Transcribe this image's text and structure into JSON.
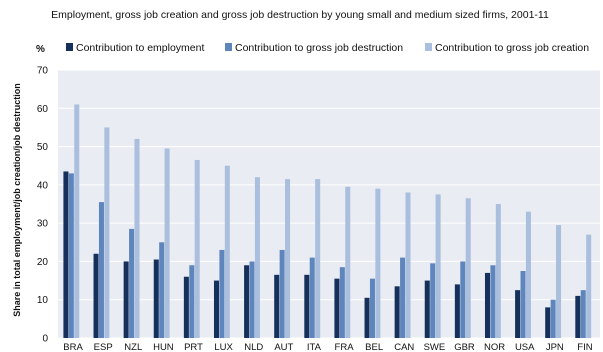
{
  "chart_data": {
    "type": "bar",
    "title": "Employment, gross job creation and gross job destruction by young small and medium sized firms, 2001-11",
    "unit_label": "%",
    "ylabel": "Share in total employment/job creation/job destruction",
    "ylim": [
      0,
      70
    ],
    "yticks": [
      0,
      10,
      20,
      30,
      40,
      50,
      60,
      70
    ],
    "grid": true,
    "legend_position": "top",
    "categories": [
      "BRA",
      "ESP",
      "NZL",
      "HUN",
      "PRT",
      "LUX",
      "NLD",
      "AUT",
      "ITA",
      "FRA",
      "BEL",
      "CAN",
      "SWE",
      "GBR",
      "NOR",
      "USA",
      "JPN",
      "FIN"
    ],
    "series": [
      {
        "name": "Contribution to employment",
        "color": "#15305a",
        "values": [
          43.5,
          22,
          20,
          20.5,
          16,
          15,
          19,
          16.5,
          16.5,
          15.5,
          10.5,
          13.5,
          15,
          14,
          17,
          12.5,
          8,
          11
        ]
      },
      {
        "name": "Contribution to gross job destruction",
        "color": "#5f86bc",
        "values": [
          43,
          35.5,
          28.5,
          25,
          19,
          23,
          20,
          23,
          21,
          18.5,
          15.5,
          21,
          19.5,
          20,
          19,
          17.5,
          10,
          12.5
        ]
      },
      {
        "name": "Contribution to gross job creation",
        "color": "#a9bfdd",
        "values": [
          61,
          55,
          52,
          49.5,
          46.5,
          45,
          42,
          41.5,
          41.5,
          39.5,
          39,
          38,
          37.5,
          36.5,
          35,
          33,
          29.5,
          27
        ]
      }
    ]
  }
}
